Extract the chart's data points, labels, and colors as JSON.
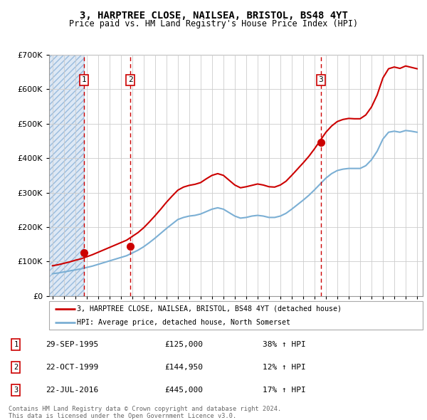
{
  "title": "3, HARPTREE CLOSE, NAILSEA, BRISTOL, BS48 4YT",
  "subtitle": "Price paid vs. HM Land Registry's House Price Index (HPI)",
  "legend_line1": "3, HARPTREE CLOSE, NAILSEA, BRISTOL, BS48 4YT (detached house)",
  "legend_line2": "HPI: Average price, detached house, North Somerset",
  "footer": "Contains HM Land Registry data © Crown copyright and database right 2024.\nThis data is licensed under the Open Government Licence v3.0.",
  "sales": [
    {
      "num": 1,
      "date": "29-SEP-1995",
      "date_x": 1995.75,
      "price": 125000,
      "pct": "38%",
      "dir": "↑"
    },
    {
      "num": 2,
      "date": "22-OCT-1999",
      "date_x": 1999.83,
      "price": 144950,
      "pct": "12%",
      "dir": "↑"
    },
    {
      "num": 3,
      "date": "22-JUL-2016",
      "date_x": 2016.55,
      "price": 445000,
      "pct": "17%",
      "dir": "↑"
    }
  ],
  "hpi_x": [
    1993.0,
    1993.5,
    1994.0,
    1994.5,
    1995.0,
    1995.5,
    1996.0,
    1996.5,
    1997.0,
    1997.5,
    1998.0,
    1998.5,
    1999.0,
    1999.5,
    2000.0,
    2000.5,
    2001.0,
    2001.5,
    2002.0,
    2002.5,
    2003.0,
    2003.5,
    2004.0,
    2004.5,
    2005.0,
    2005.5,
    2006.0,
    2006.5,
    2007.0,
    2007.5,
    2008.0,
    2008.5,
    2009.0,
    2009.5,
    2010.0,
    2010.5,
    2011.0,
    2011.5,
    2012.0,
    2012.5,
    2013.0,
    2013.5,
    2014.0,
    2014.5,
    2015.0,
    2015.5,
    2016.0,
    2016.5,
    2017.0,
    2017.5,
    2018.0,
    2018.5,
    2019.0,
    2019.5,
    2020.0,
    2020.5,
    2021.0,
    2021.5,
    2022.0,
    2022.5,
    2023.0,
    2023.5,
    2024.0,
    2024.5,
    2025.0
  ],
  "hpi_y": [
    65000,
    67000,
    70000,
    73000,
    76000,
    79000,
    83000,
    87000,
    92000,
    97000,
    102000,
    107000,
    112000,
    117000,
    125000,
    133000,
    143000,
    155000,
    168000,
    182000,
    196000,
    209000,
    222000,
    228000,
    232000,
    234000,
    238000,
    245000,
    252000,
    256000,
    252000,
    242000,
    232000,
    226000,
    228000,
    232000,
    234000,
    232000,
    228000,
    228000,
    232000,
    240000,
    252000,
    265000,
    278000,
    292000,
    308000,
    325000,
    342000,
    355000,
    364000,
    368000,
    370000,
    370000,
    370000,
    378000,
    395000,
    420000,
    455000,
    475000,
    478000,
    475000,
    480000,
    478000,
    475000
  ],
  "red_x": [
    1993.0,
    1993.5,
    1994.0,
    1994.5,
    1995.0,
    1995.5,
    1996.0,
    1996.5,
    1997.0,
    1997.5,
    1998.0,
    1998.5,
    1999.0,
    1999.5,
    2000.0,
    2000.5,
    2001.0,
    2001.5,
    2002.0,
    2002.5,
    2003.0,
    2003.5,
    2004.0,
    2004.5,
    2005.0,
    2005.5,
    2006.0,
    2006.5,
    2007.0,
    2007.5,
    2008.0,
    2008.5,
    2009.0,
    2009.5,
    2010.0,
    2010.5,
    2011.0,
    2011.5,
    2012.0,
    2012.5,
    2013.0,
    2013.5,
    2014.0,
    2014.5,
    2015.0,
    2015.5,
    2016.0,
    2016.5,
    2017.0,
    2017.5,
    2018.0,
    2018.5,
    2019.0,
    2019.5,
    2020.0,
    2020.5,
    2021.0,
    2021.5,
    2022.0,
    2022.5,
    2023.0,
    2023.5,
    2024.0,
    2024.5,
    2025.0
  ],
  "red_y": [
    88000,
    91000,
    95000,
    99000,
    104000,
    108000,
    114000,
    120000,
    127000,
    134000,
    141000,
    148000,
    155000,
    162000,
    173000,
    184000,
    198000,
    215000,
    233000,
    252000,
    272000,
    290000,
    307000,
    316000,
    321000,
    324000,
    329000,
    340000,
    350000,
    355000,
    350000,
    336000,
    322000,
    314000,
    317000,
    321000,
    325000,
    322000,
    317000,
    316000,
    322000,
    333000,
    350000,
    368000,
    386000,
    405000,
    427000,
    451000,
    475000,
    493000,
    506000,
    512000,
    515000,
    514000,
    514000,
    525000,
    548000,
    583000,
    632000,
    659000,
    664000,
    660000,
    667000,
    663000,
    659000
  ],
  "ylim": [
    0,
    700000
  ],
  "xlim_start": 1992.7,
  "xlim_end": 2025.5,
  "line_color_red": "#cc0000",
  "line_color_blue": "#7bafd4",
  "grid_color": "#cccccc",
  "hatch_region_end": 1995.75,
  "hatch_color": "#dde8f5",
  "hatch_pattern": "////",
  "box_edge_color": "#cc0000"
}
